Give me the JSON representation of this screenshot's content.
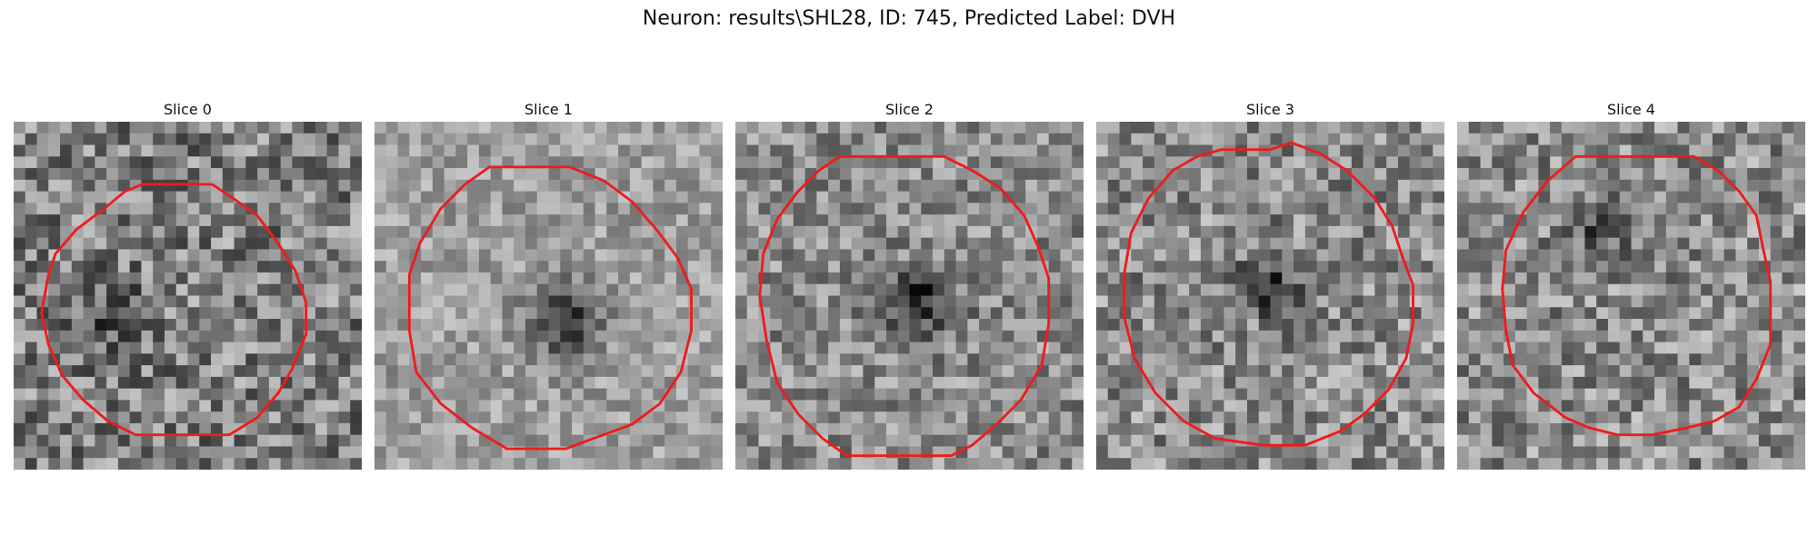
{
  "title": "Neuron: results\\SHL28, ID: 745, Predicted Label: DVH",
  "style": {
    "contour_color": "#ee1c1c",
    "colormap": "gray"
  },
  "panels": [
    {
      "label": "Slice 0",
      "dark_spot": [
        0.27,
        0.56
      ],
      "spot_strength": 0.22,
      "noise": 1.0,
      "brightness": 0.5,
      "contour": [
        [
          0.37,
          0.18
        ],
        [
          0.57,
          0.18
        ],
        [
          0.63,
          0.22
        ],
        [
          0.7,
          0.27
        ],
        [
          0.76,
          0.35
        ],
        [
          0.81,
          0.43
        ],
        [
          0.84,
          0.52
        ],
        [
          0.84,
          0.61
        ],
        [
          0.8,
          0.71
        ],
        [
          0.76,
          0.78
        ],
        [
          0.7,
          0.85
        ],
        [
          0.62,
          0.9
        ],
        [
          0.35,
          0.9
        ],
        [
          0.27,
          0.86
        ],
        [
          0.2,
          0.8
        ],
        [
          0.14,
          0.73
        ],
        [
          0.1,
          0.64
        ],
        [
          0.08,
          0.55
        ],
        [
          0.1,
          0.44
        ],
        [
          0.12,
          0.38
        ],
        [
          0.18,
          0.31
        ],
        [
          0.26,
          0.25
        ],
        [
          0.32,
          0.2
        ]
      ]
    },
    {
      "label": "Slice 1",
      "dark_spot": [
        0.55,
        0.57
      ],
      "spot_strength": 0.45,
      "noise": 0.6,
      "brightness": 0.62,
      "contour": [
        [
          0.33,
          0.13
        ],
        [
          0.56,
          0.13
        ],
        [
          0.66,
          0.17
        ],
        [
          0.74,
          0.23
        ],
        [
          0.81,
          0.31
        ],
        [
          0.87,
          0.39
        ],
        [
          0.91,
          0.48
        ],
        [
          0.91,
          0.6
        ],
        [
          0.88,
          0.72
        ],
        [
          0.82,
          0.81
        ],
        [
          0.74,
          0.87
        ],
        [
          0.63,
          0.91
        ],
        [
          0.55,
          0.94
        ],
        [
          0.38,
          0.94
        ],
        [
          0.28,
          0.88
        ],
        [
          0.19,
          0.81
        ],
        [
          0.12,
          0.72
        ],
        [
          0.1,
          0.6
        ],
        [
          0.1,
          0.44
        ],
        [
          0.13,
          0.35
        ],
        [
          0.19,
          0.25
        ],
        [
          0.26,
          0.18
        ]
      ]
    },
    {
      "label": "Slice 2",
      "dark_spot": [
        0.53,
        0.52
      ],
      "spot_strength": 0.4,
      "noise": 0.8,
      "brightness": 0.55,
      "contour": [
        [
          0.3,
          0.1
        ],
        [
          0.6,
          0.1
        ],
        [
          0.68,
          0.14
        ],
        [
          0.76,
          0.19
        ],
        [
          0.83,
          0.27
        ],
        [
          0.87,
          0.36
        ],
        [
          0.9,
          0.45
        ],
        [
          0.9,
          0.58
        ],
        [
          0.88,
          0.7
        ],
        [
          0.82,
          0.8
        ],
        [
          0.75,
          0.87
        ],
        [
          0.68,
          0.93
        ],
        [
          0.62,
          0.96
        ],
        [
          0.32,
          0.96
        ],
        [
          0.25,
          0.91
        ],
        [
          0.18,
          0.84
        ],
        [
          0.12,
          0.75
        ],
        [
          0.09,
          0.63
        ],
        [
          0.07,
          0.5
        ],
        [
          0.08,
          0.38
        ],
        [
          0.12,
          0.28
        ],
        [
          0.18,
          0.2
        ],
        [
          0.24,
          0.14
        ]
      ]
    },
    {
      "label": "Slice 3",
      "dark_spot": [
        0.5,
        0.46
      ],
      "spot_strength": 0.3,
      "noise": 0.9,
      "brightness": 0.55,
      "contour": [
        [
          0.36,
          0.08
        ],
        [
          0.5,
          0.08
        ],
        [
          0.56,
          0.06
        ],
        [
          0.64,
          0.09
        ],
        [
          0.72,
          0.14
        ],
        [
          0.8,
          0.22
        ],
        [
          0.85,
          0.3
        ],
        [
          0.88,
          0.39
        ],
        [
          0.91,
          0.47
        ],
        [
          0.91,
          0.58
        ],
        [
          0.89,
          0.68
        ],
        [
          0.84,
          0.77
        ],
        [
          0.77,
          0.84
        ],
        [
          0.7,
          0.89
        ],
        [
          0.6,
          0.93
        ],
        [
          0.48,
          0.93
        ],
        [
          0.34,
          0.91
        ],
        [
          0.25,
          0.86
        ],
        [
          0.17,
          0.78
        ],
        [
          0.11,
          0.68
        ],
        [
          0.08,
          0.56
        ],
        [
          0.08,
          0.44
        ],
        [
          0.1,
          0.32
        ],
        [
          0.15,
          0.22
        ],
        [
          0.22,
          0.14
        ],
        [
          0.29,
          0.1
        ]
      ]
    },
    {
      "label": "Slice 4",
      "dark_spot": [
        0.4,
        0.3
      ],
      "spot_strength": 0.22,
      "noise": 0.9,
      "brightness": 0.55,
      "contour": [
        [
          0.34,
          0.1
        ],
        [
          0.68,
          0.1
        ],
        [
          0.75,
          0.14
        ],
        [
          0.81,
          0.2
        ],
        [
          0.86,
          0.27
        ],
        [
          0.88,
          0.37
        ],
        [
          0.9,
          0.46
        ],
        [
          0.9,
          0.64
        ],
        [
          0.86,
          0.74
        ],
        [
          0.81,
          0.82
        ],
        [
          0.74,
          0.86
        ],
        [
          0.66,
          0.88
        ],
        [
          0.56,
          0.9
        ],
        [
          0.46,
          0.9
        ],
        [
          0.38,
          0.88
        ],
        [
          0.31,
          0.85
        ],
        [
          0.22,
          0.78
        ],
        [
          0.16,
          0.7
        ],
        [
          0.14,
          0.6
        ],
        [
          0.13,
          0.48
        ],
        [
          0.14,
          0.37
        ],
        [
          0.19,
          0.26
        ],
        [
          0.26,
          0.17
        ]
      ]
    }
  ]
}
